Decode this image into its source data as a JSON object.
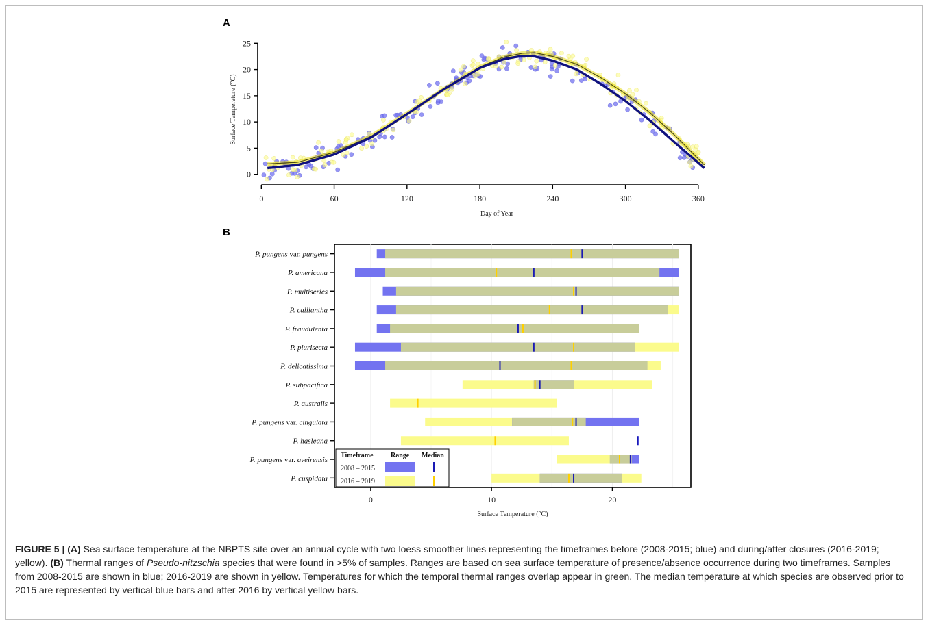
{
  "figure": {
    "caption_label": "FIGURE 5 |",
    "caption_parts": [
      {
        "b": "(A)"
      },
      {
        "t": " Sea surface temperature at the NBPTS site over an annual cycle with two loess smoother lines representing the timeframes before (2008-2015; blue) and during/after closures (2016-2019; yellow). "
      },
      {
        "b": "(B)"
      },
      {
        "t": " Thermal ranges of "
      },
      {
        "i": "Pseudo-nitzschia"
      },
      {
        "t": " species that were found in >5% of samples. Ranges are based on sea surface temperature of presence/absence occurrence during two timeframes. Samples from 2008-2015 are shown in blue; 2016-2019 are shown in yellow. Temperatures for which the temporal thermal ranges overlap appear in green. The median temperature at which species are observed prior to 2015 are represented by vertical blue bars and after 2016 by vertical yellow bars."
      }
    ]
  },
  "colors": {
    "blue_bar": "#7373f0",
    "yellow_bar": "#fbfb8c",
    "green_overlap": "#c8cd9a",
    "blue_median": "#1a1ab4",
    "yellow_median": "#ffd000",
    "blue_line": "#10127e",
    "yellow_line": "#e6d800"
  },
  "chart_data": [
    {
      "panel": "A",
      "type": "scatter",
      "xlabel": "Day of Year",
      "ylabel": "Surface Temperature (°C)",
      "xlim": [
        -3,
        368
      ],
      "ylim": [
        -2,
        27
      ],
      "xticks": [
        0,
        60,
        120,
        180,
        240,
        300,
        360
      ],
      "yticks": [
        0,
        5,
        10,
        15,
        20,
        25
      ],
      "series": [
        {
          "period": "2008 – 2015",
          "color": "blue",
          "loess": [
            [
              5,
              1.2
            ],
            [
              30,
              1.8
            ],
            [
              60,
              3.8
            ],
            [
              90,
              7.0
            ],
            [
              120,
              11.5
            ],
            [
              150,
              16.2
            ],
            [
              180,
              20.3
            ],
            [
              200,
              22.0
            ],
            [
              215,
              22.6
            ],
            [
              225,
              22.5
            ],
            [
              240,
              21.7
            ],
            [
              260,
              20.0
            ],
            [
              280,
              17.2
            ],
            [
              300,
              14.0
            ],
            [
              320,
              10.3
            ],
            [
              340,
              6.2
            ],
            [
              365,
              1.2
            ]
          ]
        },
        {
          "period": "2016 – 2019",
          "color": "yellow",
          "loess": [
            [
              5,
              2.0
            ],
            [
              30,
              2.3
            ],
            [
              60,
              4.2
            ],
            [
              90,
              7.2
            ],
            [
              120,
              11.6
            ],
            [
              150,
              16.2
            ],
            [
              180,
              20.5
            ],
            [
              200,
              22.4
            ],
            [
              215,
              23.1
            ],
            [
              225,
              23.2
            ],
            [
              240,
              22.5
            ],
            [
              260,
              21.0
            ],
            [
              280,
              18.4
            ],
            [
              300,
              15.4
            ],
            [
              320,
              11.8
            ],
            [
              340,
              7.6
            ],
            [
              365,
              1.8
            ]
          ]
        }
      ]
    },
    {
      "panel": "B",
      "type": "bar",
      "xlabel": "Surface Temperature (°C)",
      "xlim": [
        -3,
        26.5
      ],
      "xticks": [
        0,
        10,
        20
      ],
      "legend": {
        "headers": [
          "Timeframe",
          "Range",
          "Median"
        ],
        "rows": [
          "2008 – 2015",
          "2016 – 2019"
        ]
      },
      "species": [
        {
          "parts": [
            {
              "i": "P. pungens"
            },
            {
              "t": " var. "
            },
            {
              "i": "pungens"
            }
          ],
          "blue": [
            0.5,
            25.5
          ],
          "yellow": [
            1.2,
            25.5
          ],
          "median_blue": 17.5,
          "median_yellow": 16.6
        },
        {
          "parts": [
            {
              "i": "P. americana"
            }
          ],
          "blue": [
            -1.3,
            25.5
          ],
          "yellow": [
            1.2,
            23.9
          ],
          "median_blue": 13.5,
          "median_yellow": 10.4
        },
        {
          "parts": [
            {
              "i": "P. multiseries"
            }
          ],
          "blue": [
            1.0,
            25.5
          ],
          "yellow": [
            2.1,
            25.5
          ],
          "median_blue": 17.0,
          "median_yellow": 16.8
        },
        {
          "parts": [
            {
              "i": "P. calliantha"
            }
          ],
          "blue": [
            0.5,
            24.6
          ],
          "yellow": [
            2.1,
            25.5
          ],
          "median_blue": 17.5,
          "median_yellow": 14.8
        },
        {
          "parts": [
            {
              "i": "P. fraudulenta"
            }
          ],
          "blue": [
            0.5,
            22.2
          ],
          "yellow": [
            1.6,
            22.2
          ],
          "median_blue": 12.2,
          "median_yellow": 12.6
        },
        {
          "parts": [
            {
              "i": "P. plurisecta"
            }
          ],
          "blue": [
            -1.3,
            21.9
          ],
          "yellow": [
            2.5,
            25.5
          ],
          "median_blue": 13.5,
          "median_yellow": 16.8
        },
        {
          "parts": [
            {
              "i": "P. delicatissima"
            }
          ],
          "blue": [
            -1.3,
            22.9
          ],
          "yellow": [
            1.2,
            24.0
          ],
          "median_blue": 10.7,
          "median_yellow": 16.6
        },
        {
          "parts": [
            {
              "i": "P. subpacifica"
            }
          ],
          "blue": [
            13.5,
            16.8
          ],
          "yellow": [
            7.6,
            23.3
          ],
          "median_blue": 14.0,
          "median_yellow": 13.6
        },
        {
          "parts": [
            {
              "i": "P. australis"
            }
          ],
          "blue": null,
          "yellow": [
            1.6,
            15.4
          ],
          "median_blue": null,
          "median_yellow": 3.9
        },
        {
          "parts": [
            {
              "i": "P. pungens"
            },
            {
              "t": " var. "
            },
            {
              "i": "cingulata"
            }
          ],
          "blue": [
            11.7,
            22.2
          ],
          "yellow": [
            4.5,
            17.8
          ],
          "median_blue": 17.0,
          "median_yellow": 16.7
        },
        {
          "parts": [
            {
              "i": "P. hasleana"
            }
          ],
          "blue": [
            22.1,
            22.2
          ],
          "yellow": [
            2.5,
            16.4
          ],
          "median_blue": 22.1,
          "median_yellow": 10.3
        },
        {
          "parts": [
            {
              "i": "P. pungens"
            },
            {
              "t": " var. "
            },
            {
              "i": "aveirensis"
            }
          ],
          "blue": [
            19.8,
            22.2
          ],
          "yellow": [
            15.4,
            21.6
          ],
          "median_blue": 21.5,
          "median_yellow": 20.6
        },
        {
          "parts": [
            {
              "i": "P. cuspidata"
            }
          ],
          "blue": [
            14.0,
            20.8
          ],
          "yellow": [
            10.0,
            22.4
          ],
          "median_blue": 16.8,
          "median_yellow": 16.4
        }
      ]
    }
  ]
}
